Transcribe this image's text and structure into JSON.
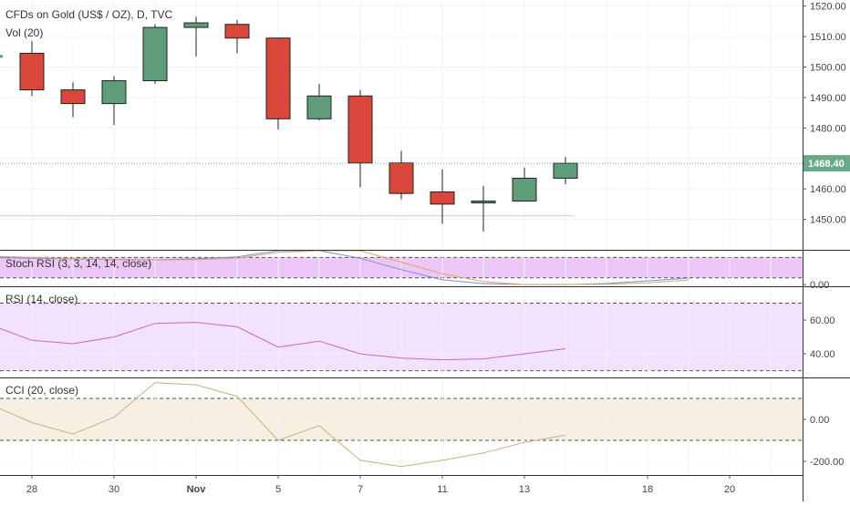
{
  "header": {
    "symbol_title": "CFDs on Gold (US$ / OZ), D, TVC",
    "volume_label": "Vol (20)"
  },
  "colors": {
    "up": "#5f9c7a",
    "down": "#d9473a",
    "last_price": "#6aaa8a",
    "stoch_fill": "#e6b4f5",
    "rsi_fill": "#f0dcff",
    "cci_fill": "#f5ecdd",
    "rsi_line": "#c46bb8",
    "cci_line": "#c8b083"
  },
  "chart_data": [
    {
      "type": "candlestick",
      "title": "CFDs on Gold (US$ / OZ), D, TVC",
      "x_tick_labels": [
        "28",
        "30",
        "Nov",
        "5",
        "7",
        "11",
        "13",
        "18",
        "20"
      ],
      "y_ticks": [
        1450.0,
        1460.0,
        1470.0,
        1480.0,
        1490.0,
        1500.0,
        1510.0,
        1520.0
      ],
      "y_tick_labels": [
        "1450.00",
        "1460.00",
        "1470.00",
        "1480.00",
        "1490.00",
        "1500.00",
        "1510.00",
        "1520.00"
      ],
      "ylim": [
        1440.0,
        1522.0
      ],
      "last_price": 1468.4,
      "last_price_label": "1468.40",
      "candles": [
        {
          "date": "Oct 28",
          "open": 1504.5,
          "high": 1508.5,
          "low": 1490.5,
          "close": 1492.5
        },
        {
          "date": "Oct 29",
          "open": 1492.5,
          "high": 1495.0,
          "low": 1483.5,
          "close": 1488.0
        },
        {
          "date": "Oct 30",
          "open": 1488.0,
          "high": 1497.0,
          "low": 1481.0,
          "close": 1495.5
        },
        {
          "date": "Oct 31",
          "open": 1495.5,
          "high": 1514.0,
          "low": 1494.5,
          "close": 1513.0
        },
        {
          "date": "Nov 1",
          "open": 1513.0,
          "high": 1516.5,
          "low": 1503.5,
          "close": 1514.5
        },
        {
          "date": "Nov 4",
          "open": 1514.0,
          "high": 1515.5,
          "low": 1504.5,
          "close": 1509.5
        },
        {
          "date": "Nov 5",
          "open": 1509.5,
          "high": 1509.5,
          "low": 1479.5,
          "close": 1483.0
        },
        {
          "date": "Nov 6",
          "open": 1483.0,
          "high": 1494.5,
          "low": 1482.5,
          "close": 1490.5
        },
        {
          "date": "Nov 7",
          "open": 1490.5,
          "high": 1492.5,
          "low": 1460.5,
          "close": 1468.5
        },
        {
          "date": "Nov 8",
          "open": 1468.5,
          "high": 1472.5,
          "low": 1456.5,
          "close": 1458.5
        },
        {
          "date": "Nov 11",
          "open": 1459.0,
          "high": 1466.5,
          "low": 1448.5,
          "close": 1455.0
        },
        {
          "date": "Nov 12",
          "open": 1455.5,
          "high": 1461.0,
          "low": 1446.0,
          "close": 1456.0
        },
        {
          "date": "Nov 13",
          "open": 1456.0,
          "high": 1467.0,
          "low": 1456.0,
          "close": 1463.5
        },
        {
          "date": "Nov 14",
          "open": 1463.5,
          "high": 1470.5,
          "low": 1461.5,
          "close": 1468.4
        }
      ]
    },
    {
      "type": "line",
      "title": "Stoch RSI (3, 3, 14, 14, close)",
      "y_ticks": [
        0.0
      ],
      "y_tick_labels": [
        "0.00"
      ],
      "ylim": [
        -5,
        100
      ],
      "bands": [
        20,
        80
      ],
      "series": [
        {
          "values": [
            80,
            78,
            76,
            74,
            73,
            76,
            82,
            100,
            100,
            78,
            44,
            14,
            3,
            0,
            0,
            3,
            11,
            19
          ]
        },
        {
          "values": [
            84,
            80,
            77,
            75,
            73,
            74,
            78,
            95,
            100,
            100,
            66,
            32,
            9,
            0,
            0,
            1,
            5,
            13
          ]
        }
      ]
    },
    {
      "type": "line",
      "title": "RSI (14, close)",
      "y_ticks": [
        40.0,
        60.0
      ],
      "y_tick_labels": [
        "40.00",
        "60.00"
      ],
      "ylim": [
        26,
        80
      ],
      "bands": [
        30,
        70
      ],
      "series": [
        {
          "values": [
            57,
            48,
            46,
            50,
            58,
            58.6,
            56,
            44,
            47.5,
            40,
            37.5,
            36.5,
            37,
            40,
            43
          ]
        }
      ]
    },
    {
      "type": "line",
      "title": "CCI (20, close)",
      "y_ticks": [
        -200.0,
        0.0
      ],
      "y_tick_labels": [
        "-200.00",
        "0.00"
      ],
      "ylim": [
        -265,
        200
      ],
      "bands": [
        -100,
        100
      ],
      "series": [
        {
          "values": [
            70,
            -15,
            -70,
            10,
            175,
            165,
            110,
            -100,
            -30,
            -195,
            -225,
            -195,
            -160,
            -110,
            -75
          ]
        }
      ]
    }
  ]
}
